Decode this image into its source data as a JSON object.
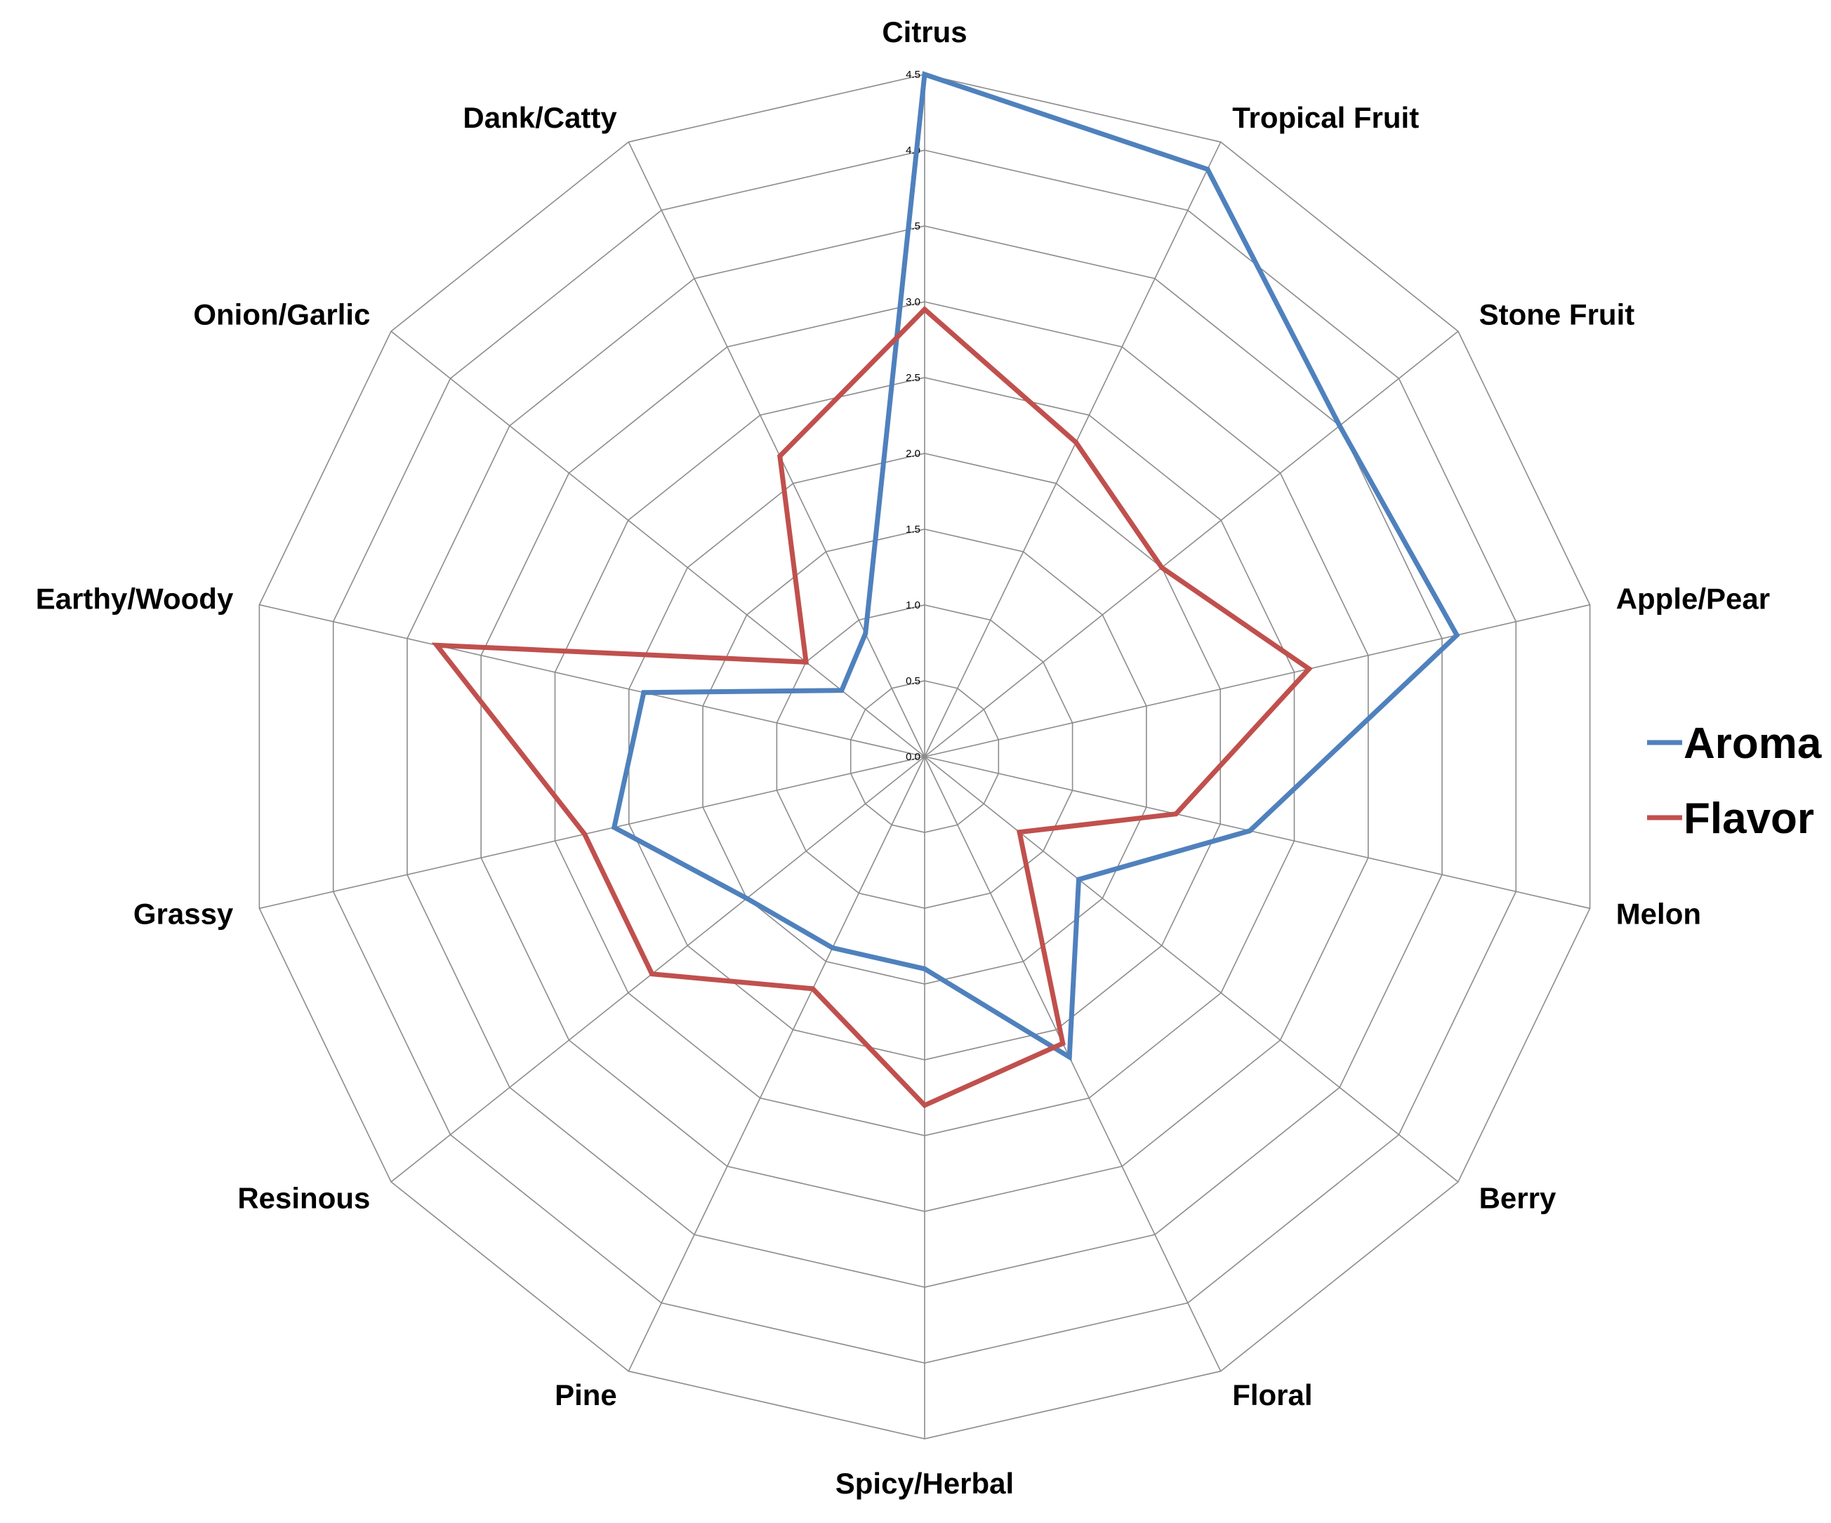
{
  "chart_data": {
    "type": "radar",
    "categories": [
      "Citrus",
      "Tropical Fruit",
      "Stone Fruit",
      "Apple/Pear",
      "Melon",
      "Berry",
      "Floral",
      "Spicy/Herbal",
      "Pine",
      "Resinous",
      "Grassy",
      "Earthy/Woody",
      "Onion/Garlic",
      "Dank/Catty"
    ],
    "series": [
      {
        "name": "Aroma",
        "color": "#4f81bd",
        "values": [
          4.5,
          4.3,
          3.5,
          3.6,
          2.2,
          1.3,
          2.2,
          1.4,
          1.4,
          1.5,
          2.1,
          1.9,
          0.7,
          0.9
        ]
      },
      {
        "name": "Flavor",
        "color": "#c0504d",
        "values": [
          2.95,
          2.3,
          2.0,
          2.6,
          1.7,
          0.8,
          2.1,
          2.3,
          1.7,
          2.3,
          2.3,
          3.3,
          1.0,
          2.2
        ]
      }
    ],
    "rlim": [
      0,
      4.5
    ],
    "ticks": [
      "0.0",
      "0.5",
      "1.0",
      "1.5",
      "2.0",
      "2.5",
      "3.0",
      "3.5",
      "4.0",
      "4.5"
    ],
    "grid": true,
    "legend_position": "right"
  }
}
